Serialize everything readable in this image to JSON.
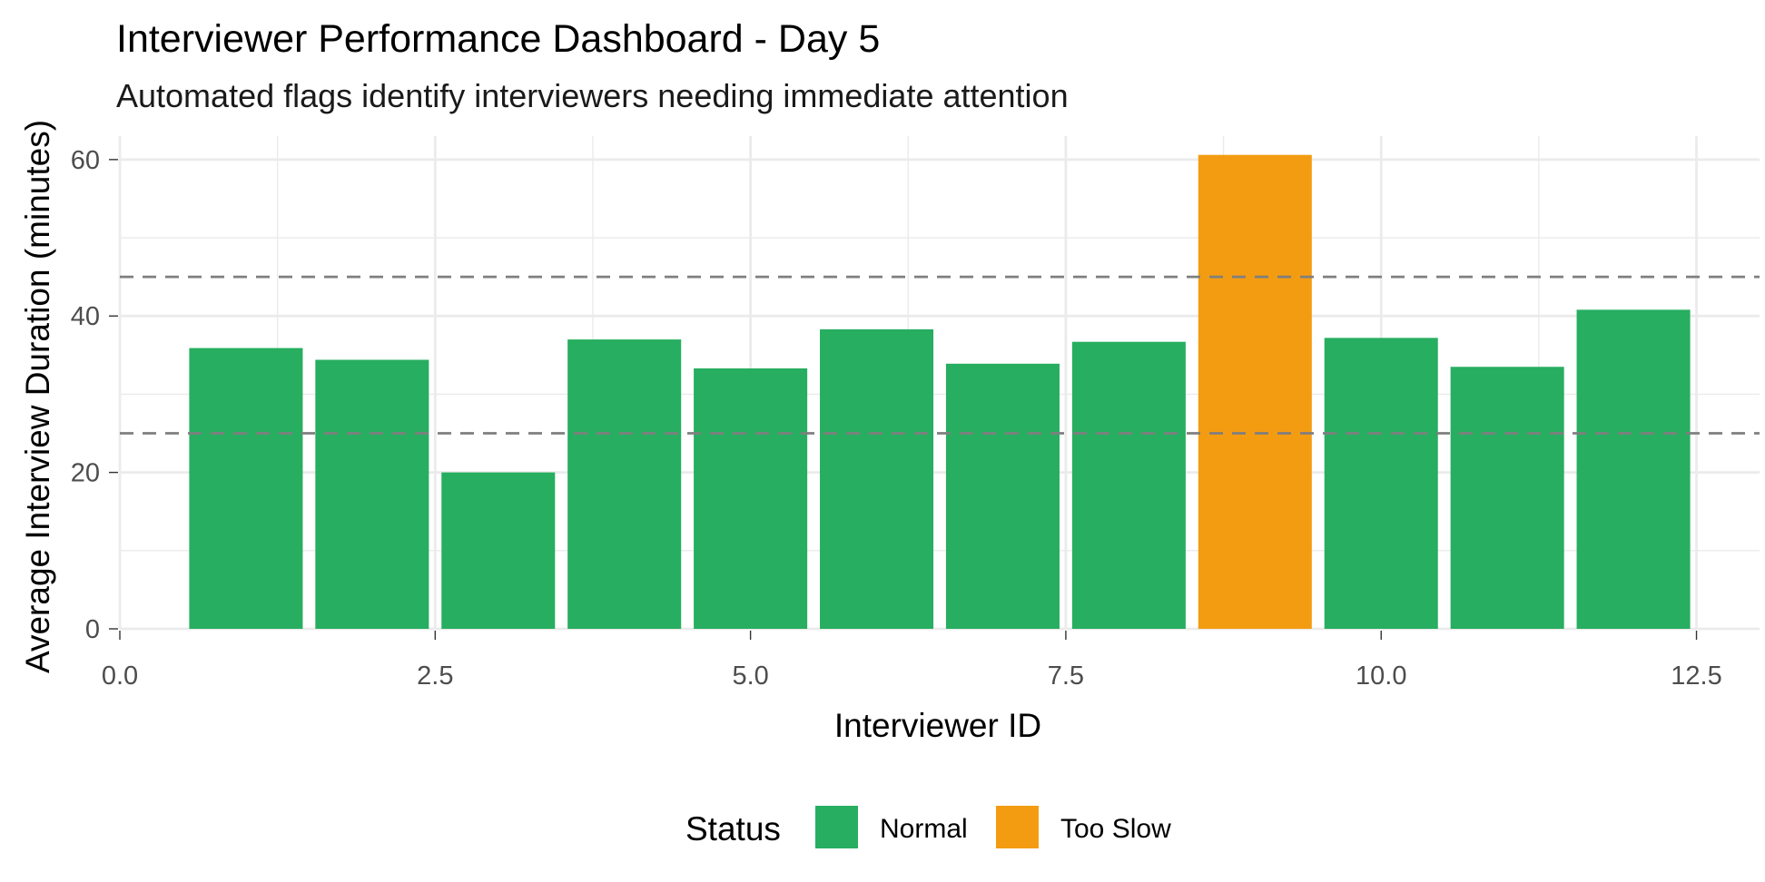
{
  "chart_data": {
    "type": "bar",
    "title": "Interviewer Performance Dashboard - Day 5",
    "subtitle": "Automated flags identify interviewers needing immediate attention",
    "xlabel": "Interviewer ID",
    "ylabel": "Average Interview Duration (minutes)",
    "xlim": [
      0,
      13
    ],
    "ylim": [
      0,
      63
    ],
    "x_ticks": [
      0.0,
      2.5,
      5.0,
      7.5,
      10.0,
      12.5
    ],
    "x_tick_labels": [
      "0.0",
      "2.5",
      "5.0",
      "7.5",
      "10.0",
      "12.5"
    ],
    "y_ticks": [
      0,
      20,
      40,
      60
    ],
    "y_tick_labels": [
      "0",
      "20",
      "40",
      "60"
    ],
    "grid": true,
    "reference_lines": [
      25,
      45
    ],
    "x": [
      1,
      2,
      3,
      4,
      5,
      6,
      7,
      8,
      9,
      10,
      11,
      12
    ],
    "values": [
      35.9,
      34.4,
      20.0,
      37.0,
      33.3,
      38.3,
      33.9,
      36.7,
      60.6,
      37.2,
      33.5,
      40.8
    ],
    "status": [
      "Normal",
      "Normal",
      "Normal",
      "Normal",
      "Normal",
      "Normal",
      "Normal",
      "Normal",
      "Too Slow",
      "Normal",
      "Normal",
      "Normal"
    ],
    "legend": {
      "title": "Status",
      "position": "bottom",
      "entries": [
        {
          "label": "Normal",
          "color": "#27AE60"
        },
        {
          "label": "Too Slow",
          "color": "#F39C12"
        }
      ]
    }
  }
}
